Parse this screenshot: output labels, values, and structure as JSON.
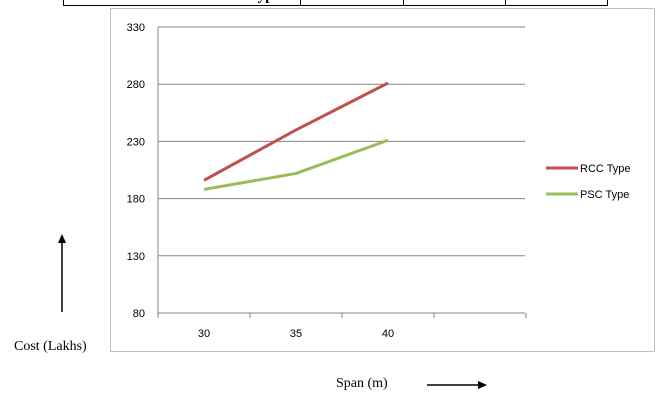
{
  "top_table": {
    "header_cell": "ype"
  },
  "chart_data": {
    "type": "line",
    "title": "",
    "x": [
      30,
      35,
      40
    ],
    "xticks": [
      "30",
      "35",
      "40"
    ],
    "yticks": [
      80,
      130,
      180,
      230,
      280,
      330
    ],
    "ylim": [
      80,
      330
    ],
    "grid": true,
    "legend_position": "right",
    "series": [
      {
        "name": "RCC Type",
        "color": "#c0504d",
        "values": [
          196,
          240,
          281
        ]
      },
      {
        "name": "PSC Type",
        "color": "#9bbb59",
        "values": [
          188,
          202,
          231
        ]
      }
    ],
    "ylabel": "Cost (Lakhs)",
    "xlabel": "Span (m)"
  }
}
